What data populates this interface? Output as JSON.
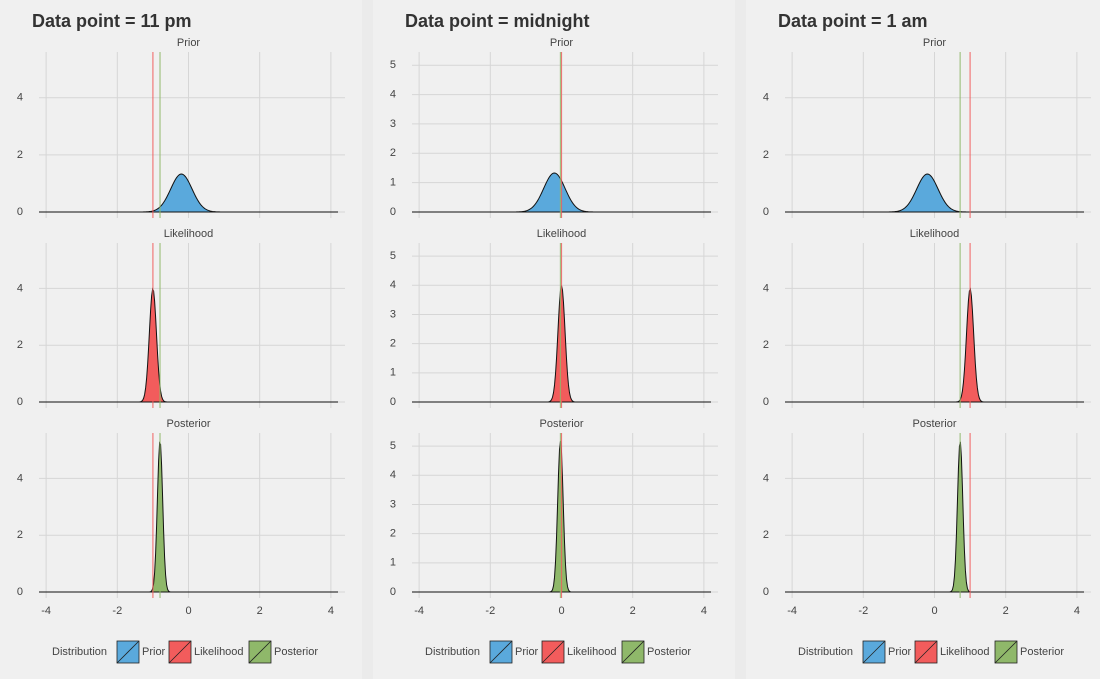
{
  "chart_data": [
    {
      "type": "density",
      "title": "Data point = 11 pm",
      "legend_title": "Distribution",
      "xlim": [
        -4.2,
        4.2
      ],
      "xticks": [
        -4,
        -2,
        0,
        2,
        4
      ],
      "ylim": [
        0,
        5.6
      ],
      "yticks": [
        0,
        2,
        4
      ],
      "series": [
        {
          "name": "Prior",
          "color": "#5aa9dc",
          "mean": -0.2,
          "sd": 0.3
        },
        {
          "name": "Likelihood",
          "color": "#f25c5c",
          "mean": -1,
          "sd": 0.1
        },
        {
          "name": "Posterior",
          "color": "#8fb86a",
          "mean": -0.8,
          "sd": 0.075
        }
      ]
    },
    {
      "type": "density",
      "title": "Data point = midnight",
      "legend_title": "Distribution",
      "xlim": [
        -4.2,
        4.2
      ],
      "xticks": [
        -4,
        -2,
        0,
        2,
        4
      ],
      "ylim": [
        0,
        5.45
      ],
      "yticks": [
        0,
        1,
        2,
        3,
        4,
        5
      ],
      "series": [
        {
          "name": "Prior",
          "color": "#5aa9dc",
          "mean": -0.2,
          "sd": 0.3
        },
        {
          "name": "Likelihood",
          "color": "#f25c5c",
          "mean": 0,
          "sd": 0.1
        },
        {
          "name": "Posterior",
          "color": "#8fb86a",
          "mean": -0.03,
          "sd": 0.077
        }
      ]
    },
    {
      "type": "density",
      "title": "Data point = 1 am",
      "legend_title": "Distribution",
      "xlim": [
        -4.2,
        4.2
      ],
      "xticks": [
        -4,
        -2,
        0,
        2,
        4
      ],
      "ylim": [
        0,
        5.6
      ],
      "yticks": [
        0,
        2,
        4
      ],
      "series": [
        {
          "name": "Prior",
          "color": "#5aa9dc",
          "mean": -0.2,
          "sd": 0.3
        },
        {
          "name": "Likelihood",
          "color": "#f25c5c",
          "mean": 1,
          "sd": 0.1
        },
        {
          "name": "Posterior",
          "color": "#8fb86a",
          "mean": 0.72,
          "sd": 0.075
        }
      ]
    }
  ]
}
